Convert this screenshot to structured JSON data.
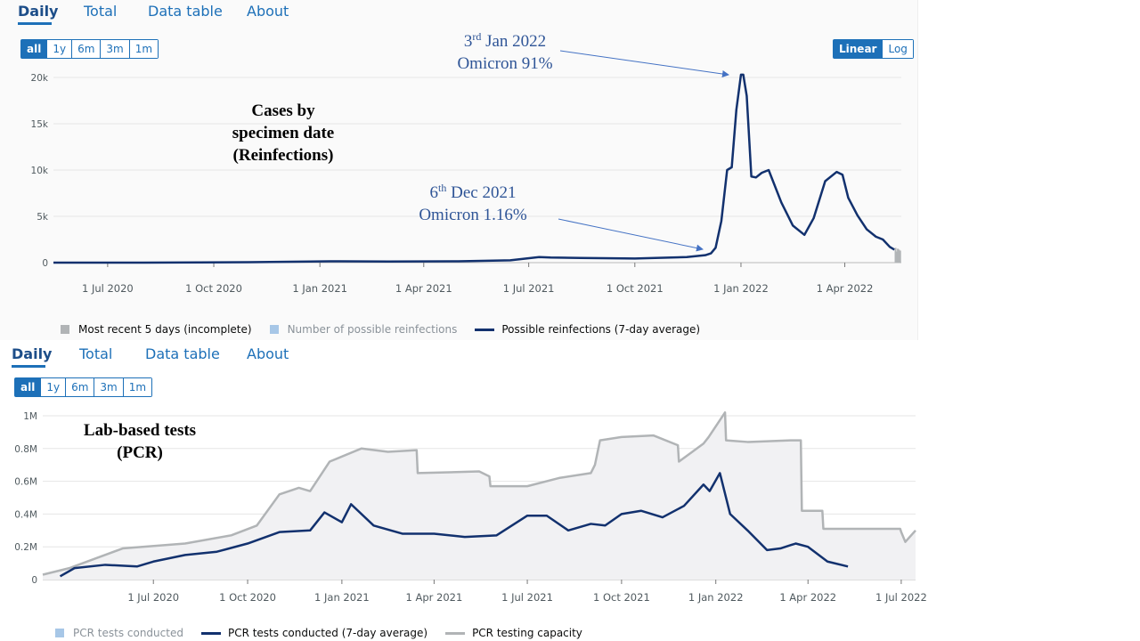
{
  "panel1": {
    "tabs": [
      "Daily",
      "Total",
      "Data table",
      "About"
    ],
    "ranges": [
      "all",
      "1y",
      "6m",
      "3m",
      "1m"
    ],
    "scale": [
      "Linear",
      "Log"
    ],
    "title_lines": [
      "Cases by",
      "specimen  date",
      "(Reinfections)"
    ],
    "annotation_top": {
      "date_day": "3",
      "date_sup": "rd",
      "date_rest": " Jan 2022",
      "label": "Omicron 91%"
    },
    "annotation_bottom": {
      "date_day": "6",
      "date_sup": "th",
      "date_rest": " Dec 2021",
      "label": "Omicron 1.16%"
    },
    "legend": [
      "Most recent 5 days (incomplete)",
      "Number of possible reinfections",
      "Possible reinfections (7-day average)"
    ]
  },
  "panel2": {
    "tabs": [
      "Daily",
      "Total",
      "Data table",
      "About"
    ],
    "ranges": [
      "all",
      "1y",
      "6m",
      "3m",
      "1m"
    ],
    "title_lines": [
      "Lab-based tests",
      "(PCR)"
    ],
    "legend": [
      "PCR tests conducted",
      "PCR tests conducted (7-day average)",
      "PCR testing capacity"
    ]
  },
  "colors": {
    "accent": "#1d70b8",
    "series_dark": "#12316e",
    "capacity": "#b1b4b6",
    "incomplete": "#b1b4b6",
    "bars_light": "#a7c7e7"
  },
  "chart_data": [
    {
      "type": "line",
      "title": "Cases by specimen date (Reinfections)",
      "xlabel": "",
      "ylabel": "",
      "ylim": [
        0,
        20000
      ],
      "y_ticks": [
        0,
        5000,
        10000,
        15000,
        20000
      ],
      "y_tick_labels": [
        "0",
        "5k",
        "10k",
        "15k",
        "20k"
      ],
      "x_ticks": [
        "2020-07-01",
        "2020-10-01",
        "2021-01-01",
        "2021-04-01",
        "2021-07-01",
        "2021-10-01",
        "2022-01-01",
        "2022-04-01"
      ],
      "x_tick_labels": [
        "1 Jul 2020",
        "1 Oct 2020",
        "1 Jan 2021",
        "1 Apr 2021",
        "1 Jul 2021",
        "1 Oct 2021",
        "1 Jan 2022",
        "1 Apr 2022"
      ],
      "xlim": [
        "2020-05-15",
        "2022-05-20"
      ],
      "series": [
        {
          "name": "Possible reinfections (7-day average)",
          "x": [
            "2020-05-15",
            "2020-08-01",
            "2020-11-01",
            "2021-01-10",
            "2021-03-01",
            "2021-05-01",
            "2021-06-15",
            "2021-07-10",
            "2021-07-20",
            "2021-08-15",
            "2021-10-01",
            "2021-11-15",
            "2021-12-01",
            "2021-12-06",
            "2021-12-10",
            "2021-12-15",
            "2021-12-20",
            "2021-12-24",
            "2021-12-28",
            "2022-01-01",
            "2022-01-03",
            "2022-01-06",
            "2022-01-10",
            "2022-01-14",
            "2022-01-19",
            "2022-01-25",
            "2022-02-05",
            "2022-02-15",
            "2022-02-25",
            "2022-03-05",
            "2022-03-15",
            "2022-03-25",
            "2022-03-30",
            "2022-04-04",
            "2022-04-12",
            "2022-04-20",
            "2022-04-28",
            "2022-05-04",
            "2022-05-10",
            "2022-05-14"
          ],
          "y": [
            0,
            0,
            50,
            150,
            120,
            150,
            250,
            600,
            550,
            500,
            450,
            600,
            800,
            1000,
            1600,
            4500,
            10000,
            10300,
            16500,
            20300,
            20300,
            18000,
            9300,
            9200,
            9700,
            10000,
            6500,
            4000,
            3000,
            4800,
            8800,
            9800,
            9500,
            7000,
            5100,
            3600,
            2800,
            2500,
            1700,
            1400
          ]
        },
        {
          "name": "Most recent 5 days (incomplete)",
          "x": [
            "2022-05-15",
            "2022-05-16",
            "2022-05-17",
            "2022-05-18",
            "2022-05-19"
          ],
          "y": [
            1600,
            1200,
            1500,
            1400,
            1300
          ]
        }
      ],
      "annotations": [
        {
          "text": "3rd Jan 2022 Omicron 91%",
          "x": "2022-01-03",
          "y": 20300
        },
        {
          "text": "6th Dec 2021 Omicron 1.16%",
          "x": "2021-12-06",
          "y": 1000
        }
      ],
      "legend_position": "bottom-left",
      "grid": true
    },
    {
      "type": "area",
      "title": "Lab-based tests (PCR)",
      "xlabel": "",
      "ylabel": "",
      "ylim": [
        0,
        1000000
      ],
      "y_ticks": [
        0,
        200000,
        400000,
        600000,
        800000,
        1000000
      ],
      "y_tick_labels": [
        "0",
        "0.2M",
        "0.4M",
        "0.6M",
        "0.8M",
        "1M"
      ],
      "x_ticks": [
        "2020-07-01",
        "2020-10-01",
        "2021-01-01",
        "2021-04-01",
        "2021-07-01",
        "2021-10-01",
        "2022-01-01",
        "2022-04-01",
        "2022-07-01"
      ],
      "x_tick_labels": [
        "1 Jul 2020",
        "1 Oct 2020",
        "1 Jan 2021",
        "1 Apr 2021",
        "1 Jul 2021",
        "1 Oct 2021",
        "1 Jan 2022",
        "1 Apr 2022",
        "1 Jul 2022"
      ],
      "xlim": [
        "2020-03-15",
        "2022-07-15"
      ],
      "series": [
        {
          "name": "PCR testing capacity",
          "x": [
            "2020-03-15",
            "2020-04-10",
            "2020-06-01",
            "2020-08-01",
            "2020-09-15",
            "2020-10-10",
            "2020-11-01",
            "2020-11-20",
            "2020-12-01",
            "2020-12-20",
            "2021-01-20",
            "2021-02-15",
            "2021-03-15",
            "2021-03-16",
            "2021-05-15",
            "2021-05-25",
            "2021-05-26",
            "2021-07-01",
            "2021-08-01",
            "2021-09-01",
            "2021-09-05",
            "2021-09-10",
            "2021-10-01",
            "2021-11-01",
            "2021-11-25",
            "2021-11-26",
            "2021-12-20",
            "2021-12-25",
            "2022-01-10",
            "2022-01-11",
            "2022-02-01",
            "2022-03-15",
            "2022-03-25",
            "2022-03-26",
            "2022-04-15",
            "2022-04-16",
            "2022-06-30",
            "2022-07-01",
            "2022-07-05",
            "2022-07-15"
          ],
          "y": [
            30000,
            70000,
            190000,
            220000,
            270000,
            330000,
            520000,
            560000,
            540000,
            720000,
            800000,
            780000,
            790000,
            650000,
            660000,
            630000,
            570000,
            570000,
            620000,
            650000,
            700000,
            850000,
            870000,
            880000,
            820000,
            720000,
            830000,
            870000,
            1020000,
            850000,
            840000,
            850000,
            850000,
            420000,
            420000,
            310000,
            310000,
            290000,
            230000,
            300000
          ]
        },
        {
          "name": "PCR tests conducted (7-day average)",
          "x": [
            "2020-04-01",
            "2020-04-15",
            "2020-05-15",
            "2020-06-15",
            "2020-07-01",
            "2020-08-01",
            "2020-09-01",
            "2020-10-01",
            "2020-11-01",
            "2020-12-01",
            "2020-12-15",
            "2021-01-01",
            "2021-01-10",
            "2021-02-01",
            "2021-03-01",
            "2021-04-01",
            "2021-05-01",
            "2021-06-01",
            "2021-07-01",
            "2021-07-20",
            "2021-08-10",
            "2021-09-01",
            "2021-09-15",
            "2021-10-01",
            "2021-10-20",
            "2021-11-10",
            "2021-12-01",
            "2021-12-20",
            "2021-12-26",
            "2022-01-05",
            "2022-01-15",
            "2022-02-01",
            "2022-02-20",
            "2022-03-05",
            "2022-03-20",
            "2022-04-01",
            "2022-04-20",
            "2022-05-10"
          ],
          "y": [
            20000,
            70000,
            90000,
            80000,
            110000,
            150000,
            170000,
            220000,
            290000,
            300000,
            410000,
            350000,
            460000,
            330000,
            280000,
            280000,
            260000,
            270000,
            390000,
            390000,
            300000,
            340000,
            330000,
            400000,
            420000,
            380000,
            450000,
            580000,
            540000,
            650000,
            400000,
            300000,
            180000,
            190000,
            220000,
            200000,
            110000,
            80000
          ]
        }
      ],
      "legend_position": "bottom-left",
      "grid": true
    }
  ]
}
